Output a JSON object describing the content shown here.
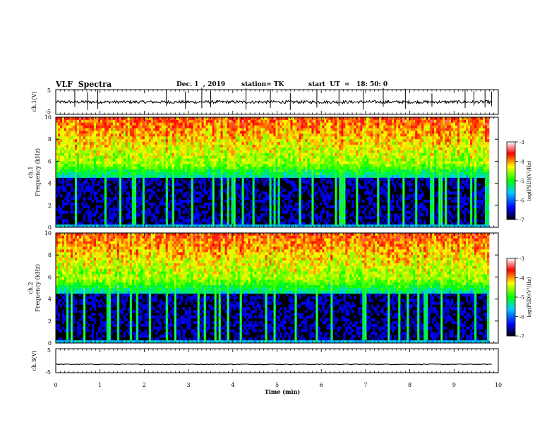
{
  "header": {
    "title": "VLF  Spectra",
    "date": "Dec. 1  , 2019",
    "station": "station= TK",
    "start": "start  UT  =   18: 50: 0"
  },
  "colors": {
    "spectrogram_bg": "#000000",
    "axis": "#000000"
  },
  "chart_data": [
    {
      "type": "line",
      "ylabel": "ch.1(V)",
      "ylim": [
        -5,
        5
      ],
      "yticks": [
        "5",
        "-5"
      ],
      "xlim": [
        0,
        10
      ],
      "baseline": 0,
      "spikes_min": [
        0.43,
        0.72,
        0.95,
        2.5,
        2.93,
        3.3,
        3.5,
        4.3,
        4.85,
        5.3,
        5.9,
        6.4,
        6.95,
        7.4,
        7.9,
        8.5,
        9.25,
        9.45,
        9.7,
        9.85
      ]
    },
    {
      "type": "heatmap",
      "ylabel_line1": "ch.1",
      "ylabel_line2": "Frequency  (kHz)",
      "ylim": [
        0,
        10
      ],
      "yticks": [
        "0",
        "2",
        "4",
        "6",
        "8",
        "10"
      ],
      "xlim": [
        0,
        10
      ],
      "colorbar_label": "log(PSD)(V²/Hz)",
      "colorbar_range": [
        -7,
        -3
      ],
      "colorbar_ticks": [
        "-3",
        "-4",
        "-5",
        "-6",
        "-7"
      ]
    },
    {
      "type": "heatmap",
      "ylabel_line1": "ch.2",
      "ylabel_line2": "Frequency  (kHz)",
      "ylim": [
        0,
        10
      ],
      "yticks": [
        "0",
        "2",
        "4",
        "6",
        "8",
        "10"
      ],
      "xlim": [
        0,
        10
      ],
      "colorbar_label": "log(PSD)(V²/Hz)",
      "colorbar_range": [
        -7,
        -3
      ],
      "colorbar_ticks": [
        "-3",
        "-4",
        "-5",
        "-6",
        "-7"
      ]
    },
    {
      "type": "line",
      "ylabel": "ch.3(V)",
      "ylim": [
        -5,
        5
      ],
      "yticks": [
        "5",
        "-5"
      ],
      "xlim": [
        0,
        10
      ],
      "baseline": -1.5
    }
  ],
  "xaxis": {
    "label": "Time  (min)",
    "ticks": [
      "0",
      "1",
      "2",
      "3",
      "4",
      "5",
      "6",
      "7",
      "8",
      "9",
      "10"
    ]
  }
}
